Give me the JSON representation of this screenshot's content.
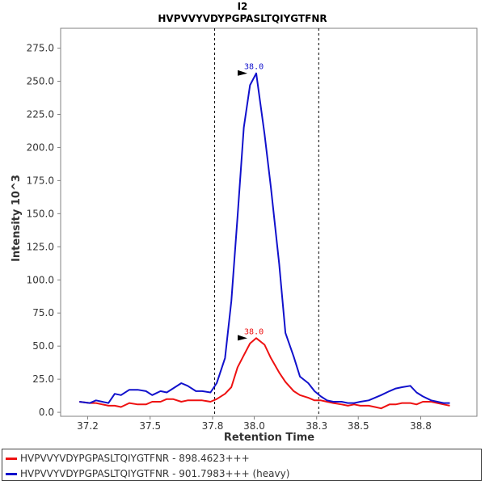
{
  "chart_data": {
    "type": "line",
    "title": "I2",
    "subtitle": "HVPVVYVDYPGPASLTQIYGTFNR",
    "xlabel": "Retention Time",
    "ylabel": "Intensity 10^3",
    "xlim": [
      37.07,
      39.07
    ],
    "ylim": [
      -3,
      290
    ],
    "x_ticks": [
      37.2,
      37.5,
      37.8,
      38.0,
      38.3,
      38.5,
      38.8
    ],
    "x_tick_labels": [
      "37.2",
      "37.5",
      "37.8",
      "38.0",
      "38.3",
      "38.5",
      "38.8"
    ],
    "y_ticks": [
      0,
      25,
      50,
      75,
      100,
      125,
      150,
      175,
      200,
      225,
      250,
      275
    ],
    "y_tick_labels": [
      "0.0",
      "25.0",
      "50.0",
      "75.0",
      "100.0",
      "125.0",
      "150.0",
      "175.0",
      "200.0",
      "225.0",
      "250.0",
      "275.0"
    ],
    "boundaries": [
      37.81,
      38.31
    ],
    "series": [
      {
        "name": "HVPVVYVDYPGPASLTQIYGTFNR - 898.4623+++",
        "color": "#ee1111",
        "peak_label": "38.0",
        "peak_x": 37.975,
        "peak_y": 56,
        "x": [
          37.16,
          37.21,
          37.24,
          37.27,
          37.3,
          37.33,
          37.36,
          37.4,
          37.44,
          37.48,
          37.51,
          37.55,
          37.58,
          37.61,
          37.65,
          37.68,
          37.72,
          37.75,
          37.79,
          37.82,
          37.86,
          37.89,
          37.92,
          37.95,
          37.98,
          38.01,
          38.05,
          38.08,
          38.12,
          38.15,
          38.19,
          38.22,
          38.26,
          38.29,
          38.32,
          38.35,
          38.38,
          38.42,
          38.45,
          38.48,
          38.51,
          38.55,
          38.58,
          38.61,
          38.65,
          38.68,
          38.71,
          38.75,
          38.78,
          38.81,
          38.85,
          38.88,
          38.91,
          38.94
        ],
        "y": [
          8,
          7,
          7,
          6,
          5,
          5,
          4,
          7,
          6,
          6,
          8,
          8,
          10,
          10,
          8,
          9,
          9,
          9,
          8,
          10,
          14,
          19,
          34,
          43,
          52,
          56,
          51,
          41,
          30,
          23,
          16,
          13,
          11,
          9,
          9,
          8,
          7,
          6,
          5,
          6,
          5,
          5,
          4,
          3,
          6,
          6,
          7,
          7,
          6,
          8,
          8,
          7,
          6,
          5
        ]
      },
      {
        "name": "HVPVVYVDYPGPASLTQIYGTFNR - 901.7983+++ (heavy)",
        "color": "#1111cc",
        "peak_label": "38.0",
        "peak_x": 37.975,
        "peak_y": 256,
        "x": [
          37.16,
          37.21,
          37.24,
          37.27,
          37.3,
          37.33,
          37.36,
          37.4,
          37.44,
          37.48,
          37.51,
          37.55,
          37.58,
          37.61,
          37.65,
          37.68,
          37.72,
          37.75,
          37.79,
          37.82,
          37.86,
          37.89,
          37.92,
          37.95,
          37.98,
          38.01,
          38.05,
          38.08,
          38.12,
          38.15,
          38.19,
          38.22,
          38.26,
          38.29,
          38.32,
          38.35,
          38.38,
          38.42,
          38.45,
          38.48,
          38.51,
          38.55,
          38.58,
          38.61,
          38.65,
          38.68,
          38.71,
          38.75,
          38.78,
          38.81,
          38.85,
          38.88,
          38.91,
          38.94
        ],
        "y": [
          8,
          7,
          9,
          8,
          7,
          14,
          13,
          17,
          17,
          16,
          13,
          16,
          15,
          18,
          22,
          20,
          16,
          16,
          15,
          22,
          41,
          84,
          148,
          215,
          247,
          256,
          210,
          170,
          112,
          60,
          42,
          27,
          22,
          16,
          12,
          9,
          8,
          8,
          7,
          7,
          8,
          9,
          11,
          13,
          16,
          18,
          19,
          20,
          15,
          12,
          9,
          8,
          7,
          7
        ]
      }
    ]
  }
}
